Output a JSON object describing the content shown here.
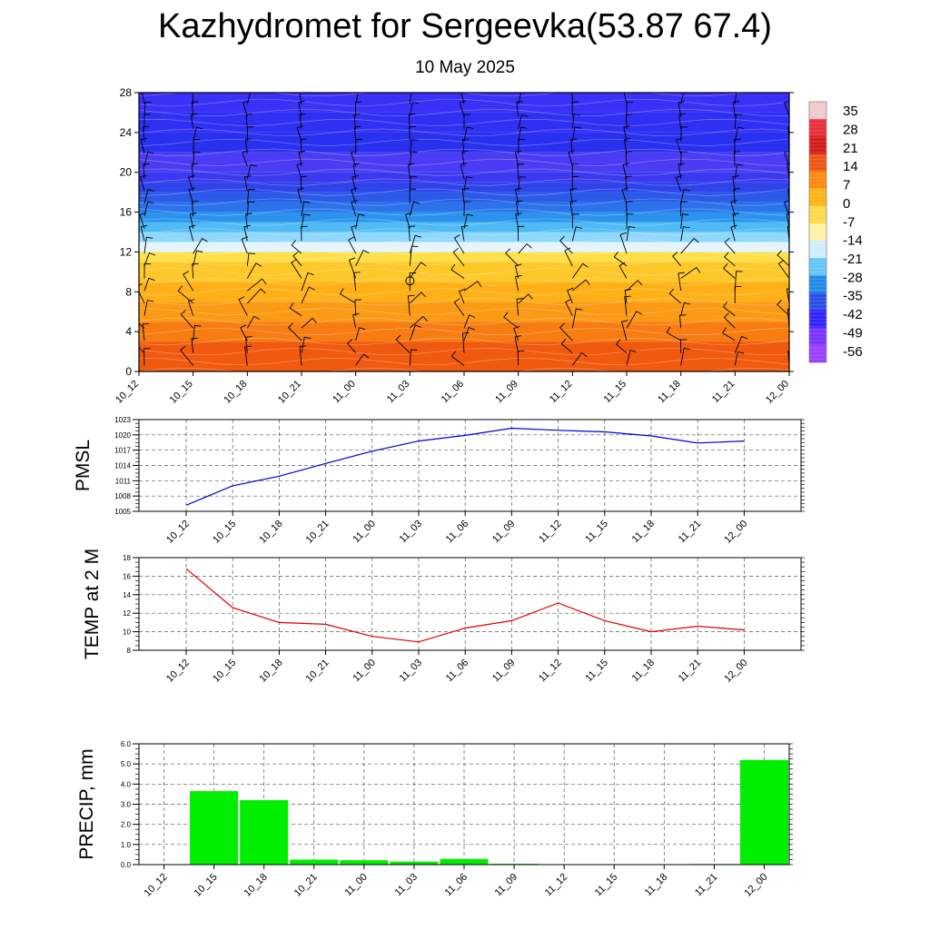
{
  "header": {
    "title": "Kazhydromet for Sergeevka(53.87 67.4)",
    "subtitle": "10 May 2025"
  },
  "chart_data": [
    {
      "type": "heatmap",
      "name": "upper-air-temperature-cross-section",
      "x_categories": [
        "10_12",
        "10_15",
        "10_18",
        "10_21",
        "11_00",
        "11_03",
        "11_06",
        "11_09",
        "11_12",
        "11_15",
        "11_18",
        "11_21",
        "12_00"
      ],
      "ylim": [
        0,
        28
      ],
      "y_ticks": [
        0,
        4,
        8,
        12,
        16,
        20,
        24,
        28
      ],
      "colorbar_labels": [
        "35",
        "28",
        "21",
        "14",
        "7",
        "0",
        "-7",
        "-14",
        "-21",
        "-28",
        "-35",
        "-42",
        "-49",
        "-56"
      ],
      "colorbar_colors": [
        "#f2c9d0",
        "#e8303a",
        "#d41a1a",
        "#ee5515",
        "#ff8a10",
        "#ffb515",
        "#ffd84a",
        "#fff3a8",
        "#cfeeff",
        "#63c6f6",
        "#1f8be8",
        "#2a4ee8",
        "#3322ff",
        "#7a33ff",
        "#9a40ff"
      ],
      "layers": [
        {
          "from": 0,
          "to": 3,
          "color": "#f05a0e"
        },
        {
          "from": 3,
          "to": 5,
          "color": "#f77d12"
        },
        {
          "from": 5,
          "to": 7,
          "color": "#fb9a14"
        },
        {
          "from": 7,
          "to": 9,
          "color": "#ffb016"
        },
        {
          "from": 9,
          "to": 11,
          "color": "#ffc82a"
        },
        {
          "from": 11,
          "to": 12,
          "color": "#ffe04a"
        },
        {
          "from": 12,
          "to": 13,
          "color": "#e4f5ff"
        },
        {
          "from": 13,
          "to": 14,
          "color": "#8fd8fb"
        },
        {
          "from": 14,
          "to": 15,
          "color": "#50baf5"
        },
        {
          "from": 15,
          "to": 16,
          "color": "#2b93ee"
        },
        {
          "from": 16,
          "to": 17,
          "color": "#2a73ea"
        },
        {
          "from": 17,
          "to": 18,
          "color": "#2a5ae8"
        },
        {
          "from": 18,
          "to": 19,
          "color": "#2d44ea"
        },
        {
          "from": 19,
          "to": 20,
          "color": "#3a38f0"
        },
        {
          "from": 20,
          "to": 22,
          "color": "#4a3cf5"
        },
        {
          "from": 22,
          "to": 24,
          "color": "#2a30f0"
        },
        {
          "from": 24,
          "to": 26,
          "color": "#3030f5"
        },
        {
          "from": 26,
          "to": 28,
          "color": "#3a30f8"
        }
      ]
    },
    {
      "type": "line",
      "name": "pmsl",
      "ylabel": "PMSL",
      "categories": [
        "10_12",
        "10_15",
        "10_18",
        "10_21",
        "11_00",
        "11_03",
        "11_06",
        "11_09",
        "11_12",
        "11_15",
        "11_18",
        "11_21",
        "12_00"
      ],
      "ylim": [
        1005,
        1023
      ],
      "y_ticks": [
        1005,
        1008,
        1011,
        1014,
        1017,
        1020,
        1023
      ],
      "values": [
        1006.2,
        1010.0,
        1011.9,
        1014.4,
        1016.8,
        1018.8,
        1019.9,
        1021.3,
        1020.9,
        1020.6,
        1019.8,
        1018.4,
        1018.8
      ],
      "color": "#0000cc"
    },
    {
      "type": "line",
      "name": "temp-2m",
      "ylabel": "TEMP at 2 M",
      "categories": [
        "10_12",
        "10_15",
        "10_18",
        "10_21",
        "11_00",
        "11_03",
        "11_06",
        "11_09",
        "11_12",
        "11_15",
        "11_18",
        "11_21",
        "12_00"
      ],
      "ylim": [
        8,
        18
      ],
      "y_ticks": [
        8,
        10,
        12,
        14,
        16,
        18
      ],
      "values": [
        16.8,
        12.6,
        11.0,
        10.8,
        9.5,
        8.9,
        10.4,
        11.2,
        13.1,
        11.2,
        10.0,
        10.6,
        10.2
      ],
      "color": "#e00000"
    },
    {
      "type": "bar",
      "name": "precip",
      "ylabel": "PRECIP, mm",
      "categories": [
        "10_12",
        "10_15",
        "10_18",
        "10_21",
        "11_00",
        "11_03",
        "11_06",
        "11_09",
        "11_12",
        "11_15",
        "11_18",
        "11_21",
        "12_00"
      ],
      "ylim": [
        0,
        6
      ],
      "y_ticks": [
        "0.0",
        "1.0",
        "2.0",
        "3.0",
        "4.0",
        "5.0",
        "6.0"
      ],
      "values": [
        0,
        3.65,
        3.2,
        0.25,
        0.22,
        0.15,
        0.28,
        0.04,
        0.0,
        0.0,
        0.0,
        0.03,
        5.2
      ],
      "color": "#00ee00"
    }
  ]
}
